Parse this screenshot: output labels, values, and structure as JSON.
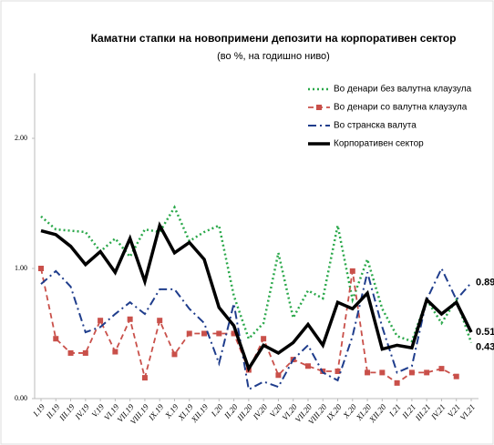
{
  "chart_data": {
    "type": "line",
    "title": "Каматни стапки на новопримени депозити на корпоративен сектор",
    "subtitle": "(во %, на годишно ниво)",
    "categories": [
      "I.19",
      "II.19",
      "III.19",
      "IV.19",
      "V.19",
      "VI.19",
      "VII.19",
      "VIII.19",
      "IX.19",
      "X.19",
      "XI.19",
      "XII.19",
      "I.20",
      "II.20",
      "III.20",
      "IV.20",
      "V.20",
      "VI.20",
      "VII.20",
      "VIII.20",
      "IX.20",
      "X.20",
      "XI.20",
      "XII.20",
      "I.21",
      "II.21",
      "III.21",
      "IV.21",
      "V.21",
      "VI.21"
    ],
    "ylim": [
      0,
      2.5
    ],
    "yticks": [
      {
        "value": 0,
        "label": "0.00"
      },
      {
        "value": 1,
        "label": "1.00"
      },
      {
        "value": 2,
        "label": "2.00"
      }
    ],
    "legend": "top-right",
    "series": [
      {
        "name": "Во денари без валутна клаузула",
        "color": "#2aa84a",
        "style": "dotted",
        "values": [
          1.4,
          1.3,
          1.29,
          1.28,
          1.13,
          1.23,
          1.09,
          1.3,
          1.28,
          1.47,
          1.21,
          1.28,
          1.33,
          0.79,
          0.46,
          0.58,
          1.12,
          0.62,
          0.83,
          0.77,
          1.33,
          0.76,
          1.07,
          0.69,
          0.48,
          0.44,
          0.76,
          0.58,
          0.76,
          0.43
        ]
      },
      {
        "name": "Во денари со валутна клаузула",
        "color": "#c9504a",
        "style": "dashed-square",
        "values": [
          1.0,
          0.46,
          0.35,
          0.35,
          0.6,
          0.36,
          0.61,
          0.16,
          0.6,
          0.34,
          0.5,
          0.5,
          0.5,
          0.5,
          0.22,
          0.46,
          0.18,
          0.3,
          0.25,
          0.21,
          0.21,
          0.98,
          0.2,
          0.2,
          0.12,
          0.2,
          0.2,
          0.23,
          0.17,
          null
        ]
      },
      {
        "name": "Во странска валута",
        "color": "#1f3d8c",
        "style": "dashdot",
        "values": [
          0.88,
          0.98,
          0.86,
          0.51,
          0.55,
          0.65,
          0.74,
          0.65,
          0.84,
          0.84,
          0.69,
          0.58,
          0.27,
          0.73,
          0.07,
          0.13,
          0.09,
          0.3,
          0.41,
          0.2,
          0.14,
          0.48,
          0.97,
          0.55,
          0.2,
          0.25,
          0.76,
          1.0,
          0.76,
          0.89
        ]
      },
      {
        "name": "Корпоративен сектор",
        "color": "#000000",
        "style": "solid",
        "values": [
          1.29,
          1.26,
          1.17,
          1.03,
          1.13,
          0.97,
          1.23,
          0.9,
          1.33,
          1.12,
          1.2,
          1.07,
          0.7,
          0.56,
          0.23,
          0.41,
          0.35,
          0.43,
          0.57,
          0.41,
          0.74,
          0.69,
          0.81,
          0.38,
          0.41,
          0.39,
          0.76,
          0.65,
          0.74,
          0.51
        ]
      }
    ]
  }
}
